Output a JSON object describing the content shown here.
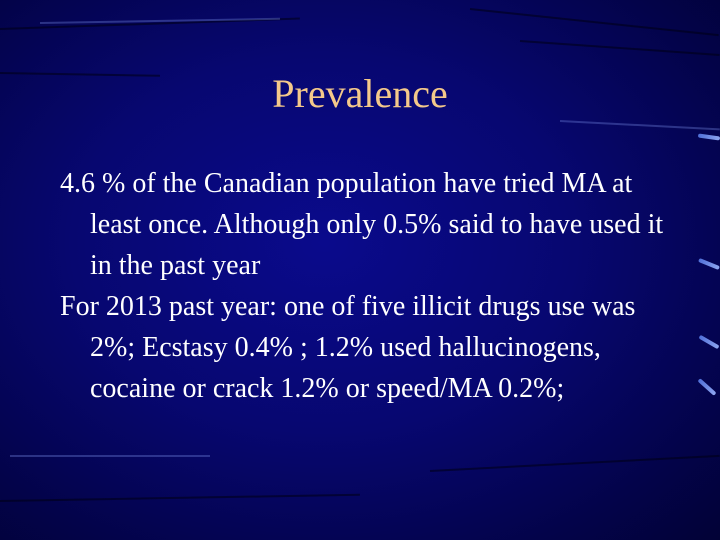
{
  "slide": {
    "title": "Prevalence",
    "bullets": [
      "4.6 % of the Canadian population have tried MA at least once. Although only 0.5% said to have used it in the past year",
      "For 2013 past year: one of five illicit drugs use was 2%; Ecstasy 0.4% ; 1.2% used hallucinogens, cocaine or crack 1.2% or speed/MA 0.2%;"
    ]
  },
  "colors": {
    "background": "#07076e",
    "title": "#f4c98a",
    "text": "#ffffff",
    "accent_ticks": "#6f8ae6"
  }
}
